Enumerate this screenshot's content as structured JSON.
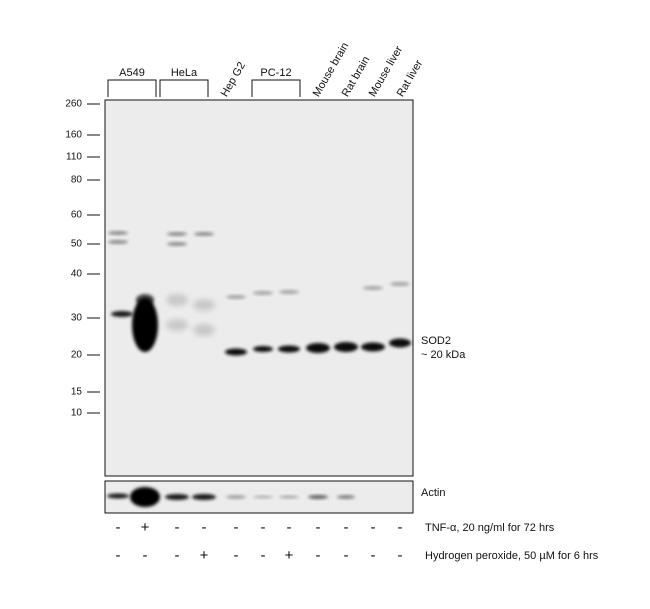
{
  "lane_groups": [
    {
      "label": "A549"
    },
    {
      "label": "HeLa"
    },
    {
      "label": "Hep G2"
    },
    {
      "label": "PC-12"
    },
    {
      "label": "Mouse brain"
    },
    {
      "label": "Rat brain"
    },
    {
      "label": "Mouse liver"
    },
    {
      "label": "Rat liver"
    }
  ],
  "markers": [
    260,
    160,
    110,
    80,
    60,
    50,
    40,
    30,
    20,
    15,
    10
  ],
  "target": {
    "name": "SOD2",
    "size": "~ 20 kDa"
  },
  "loading_control": "Actin",
  "treatments": [
    {
      "label": "TNF-α, 20 ng/ml for 72 hrs",
      "signs": [
        "-",
        "+",
        "-",
        "-",
        "-",
        "-",
        "-",
        "-",
        "-",
        "-",
        "-"
      ]
    },
    {
      "label": "Hydrogen peroxide, 50 µM for 6 hrs",
      "signs": [
        "-",
        "-",
        "-",
        "+",
        "-",
        "-",
        "+",
        "-",
        "-",
        "-",
        "-"
      ]
    }
  ]
}
